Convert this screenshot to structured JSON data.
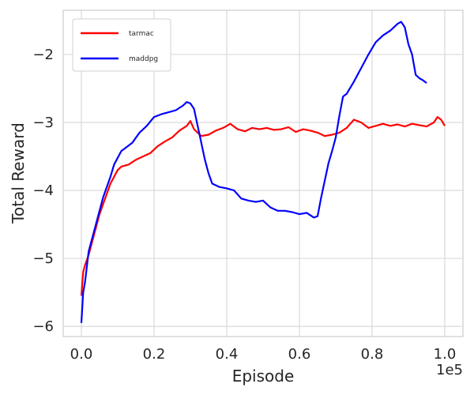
{
  "chart_data": {
    "type": "line",
    "xlabel": "Episode",
    "ylabel": "Total Reward",
    "x_offset_label": "1e5",
    "xlim": [
      -0.05,
      1.05
    ],
    "ylim": [
      -6.15,
      -1.35
    ],
    "xticks": [
      0.0,
      0.2,
      0.4,
      0.6,
      0.8,
      1.0
    ],
    "xtick_labels": [
      "0.0",
      "0.2",
      "0.4",
      "0.6",
      "0.8",
      "1.0"
    ],
    "yticks": [
      -6,
      -5,
      -4,
      -3,
      -2
    ],
    "ytick_labels": [
      "−6",
      "−5",
      "−4",
      "−3",
      "−2"
    ],
    "grid": true,
    "legend_position": "top-left",
    "series": [
      {
        "name": "tarmac",
        "color": "#ff0000",
        "x": [
          0.0,
          0.005,
          0.01,
          0.02,
          0.03,
          0.04,
          0.05,
          0.06,
          0.07,
          0.08,
          0.09,
          0.1,
          0.11,
          0.13,
          0.15,
          0.17,
          0.19,
          0.21,
          0.23,
          0.25,
          0.27,
          0.29,
          0.3,
          0.31,
          0.33,
          0.35,
          0.37,
          0.39,
          0.41,
          0.43,
          0.45,
          0.47,
          0.49,
          0.51,
          0.53,
          0.55,
          0.57,
          0.59,
          0.61,
          0.63,
          0.65,
          0.67,
          0.69,
          0.71,
          0.73,
          0.75,
          0.77,
          0.79,
          0.81,
          0.83,
          0.85,
          0.87,
          0.89,
          0.91,
          0.93,
          0.95,
          0.97,
          0.98,
          0.99,
          1.0
        ],
        "y": [
          -5.55,
          -5.2,
          -5.1,
          -4.95,
          -4.75,
          -4.55,
          -4.35,
          -4.2,
          -4.05,
          -3.9,
          -3.8,
          -3.7,
          -3.65,
          -3.62,
          -3.55,
          -3.5,
          -3.45,
          -3.35,
          -3.28,
          -3.22,
          -3.12,
          -3.05,
          -2.98,
          -3.1,
          -3.2,
          -3.18,
          -3.12,
          -3.08,
          -3.02,
          -3.1,
          -3.13,
          -3.08,
          -3.1,
          -3.08,
          -3.11,
          -3.1,
          -3.07,
          -3.14,
          -3.1,
          -3.12,
          -3.15,
          -3.2,
          -3.18,
          -3.15,
          -3.08,
          -2.96,
          -3.0,
          -3.08,
          -3.05,
          -3.02,
          -3.05,
          -3.03,
          -3.06,
          -3.02,
          -3.04,
          -3.06,
          -3.0,
          -2.92,
          -2.96,
          -3.05
        ]
      },
      {
        "name": "maddpg",
        "color": "#0000ff",
        "x": [
          0.0,
          0.005,
          0.01,
          0.02,
          0.03,
          0.04,
          0.05,
          0.06,
          0.07,
          0.08,
          0.09,
          0.1,
          0.11,
          0.12,
          0.14,
          0.16,
          0.18,
          0.2,
          0.22,
          0.24,
          0.26,
          0.28,
          0.29,
          0.3,
          0.31,
          0.32,
          0.33,
          0.34,
          0.35,
          0.36,
          0.38,
          0.4,
          0.42,
          0.44,
          0.46,
          0.48,
          0.5,
          0.52,
          0.54,
          0.56,
          0.58,
          0.6,
          0.62,
          0.64,
          0.65,
          0.66,
          0.67,
          0.68,
          0.69,
          0.7,
          0.71,
          0.72,
          0.73,
          0.75,
          0.77,
          0.79,
          0.81,
          0.83,
          0.85,
          0.87,
          0.88,
          0.89,
          0.9,
          0.91,
          0.92,
          0.93,
          0.94,
          0.95
        ],
        "y": [
          -5.95,
          -5.5,
          -5.35,
          -4.9,
          -4.7,
          -4.5,
          -4.3,
          -4.1,
          -3.95,
          -3.8,
          -3.62,
          -3.52,
          -3.42,
          -3.38,
          -3.3,
          -3.15,
          -3.05,
          -2.92,
          -2.88,
          -2.85,
          -2.82,
          -2.75,
          -2.7,
          -2.72,
          -2.8,
          -3.05,
          -3.3,
          -3.55,
          -3.75,
          -3.9,
          -3.95,
          -3.97,
          -4.0,
          -4.12,
          -4.15,
          -4.17,
          -4.15,
          -4.25,
          -4.3,
          -4.3,
          -4.32,
          -4.35,
          -4.33,
          -4.4,
          -4.38,
          -4.1,
          -3.85,
          -3.6,
          -3.42,
          -3.22,
          -2.9,
          -2.62,
          -2.58,
          -2.4,
          -2.2,
          -2.0,
          -1.82,
          -1.72,
          -1.65,
          -1.55,
          -1.52,
          -1.6,
          -1.85,
          -2.0,
          -2.3,
          -2.35,
          -2.38,
          -2.42
        ]
      }
    ]
  }
}
